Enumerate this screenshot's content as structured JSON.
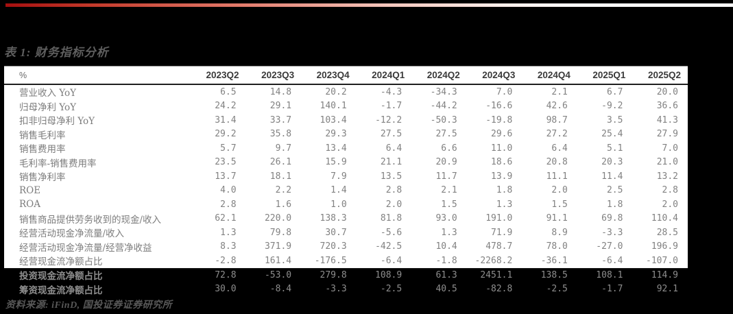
{
  "title": "表 1: 财务指标分析",
  "source_note": "资料来源: iFinD, 国投证券证券研究所",
  "colors": {
    "page_background": "#000000",
    "accent_bar_left": "#a50f0f",
    "accent_bar_right": "#ffffff",
    "table_background": "#ffffff",
    "header_text": "#3a3a3a",
    "body_text": "#818181",
    "title_text": "#5e5e5e"
  },
  "chart_data": {
    "type": "table",
    "title": "表 1: 财务指标分析",
    "unit_header": "%",
    "columns": [
      "2023Q2",
      "2023Q3",
      "2023Q4",
      "2024Q1",
      "2024Q2",
      "2024Q3",
      "2024Q4",
      "2025Q1",
      "2025Q2"
    ],
    "rows": [
      {
        "label": "营业收入 YoY",
        "values": [
          "6.5",
          "14.8",
          "20.2",
          "-4.3",
          "-34.3",
          "7.0",
          "2.1",
          "6.7",
          "20.0"
        ]
      },
      {
        "label": "归母净利 YoY",
        "values": [
          "24.2",
          "29.1",
          "140.1",
          "-1.7",
          "-44.2",
          "-16.6",
          "42.6",
          "-9.2",
          "36.6"
        ]
      },
      {
        "label": "扣非归母净利 YoY",
        "values": [
          "31.4",
          "33.7",
          "103.4",
          "-12.2",
          "-50.3",
          "-19.8",
          "98.7",
          "3.5",
          "41.3"
        ]
      },
      {
        "label": "销售毛利率",
        "values": [
          "29.2",
          "35.8",
          "29.3",
          "27.5",
          "27.5",
          "29.6",
          "27.2",
          "25.4",
          "27.9"
        ]
      },
      {
        "label": "销售费用率",
        "values": [
          "5.7",
          "9.7",
          "13.4",
          "6.4",
          "6.6",
          "11.0",
          "6.4",
          "5.1",
          "7.0"
        ]
      },
      {
        "label": "毛利率-销售费用率",
        "values": [
          "23.5",
          "26.1",
          "15.9",
          "21.1",
          "20.9",
          "18.6",
          "20.8",
          "20.3",
          "21.0"
        ]
      },
      {
        "label": "销售净利率",
        "values": [
          "13.7",
          "18.1",
          "7.9",
          "13.5",
          "11.7",
          "13.9",
          "11.1",
          "11.4",
          "13.2"
        ]
      },
      {
        "label": "ROE",
        "values": [
          "4.0",
          "2.2",
          "1.4",
          "2.8",
          "2.1",
          "1.8",
          "2.0",
          "2.5",
          "2.8"
        ]
      },
      {
        "label": "ROA",
        "values": [
          "2.8",
          "1.6",
          "1.0",
          "2.0",
          "1.5",
          "1.3",
          "1.5",
          "1.8",
          "2.0"
        ]
      },
      {
        "label": "销售商品提供劳务收到的现金/收入",
        "values": [
          "62.1",
          "220.0",
          "138.3",
          "81.8",
          "93.0",
          "191.0",
          "91.1",
          "69.8",
          "110.4"
        ]
      },
      {
        "label": "经营活动现金净流量/收入",
        "values": [
          "1.3",
          "79.8",
          "30.7",
          "-5.6",
          "1.3",
          "71.9",
          "8.9",
          "-3.3",
          "28.5"
        ]
      },
      {
        "label": "经营活动现金净流量/经营净收益",
        "values": [
          "8.3",
          "371.9",
          "720.3",
          "-42.5",
          "10.4",
          "478.7",
          "78.0",
          "-27.0",
          "196.9"
        ]
      },
      {
        "label": "经营现金流净额占比",
        "values": [
          "-2.8",
          "161.4",
          "-176.5",
          "-6.4",
          "-1.8",
          "-2268.2",
          "-36.1",
          "-6.4",
          "-107.0"
        ]
      }
    ],
    "rows_below_rule": [
      {
        "label": "投资现金流净额占比",
        "values": [
          "72.8",
          "-53.0",
          "279.8",
          "108.9",
          "61.3",
          "2451.1",
          "138.5",
          "108.1",
          "114.9"
        ]
      },
      {
        "label": "筹资现金流净额占比",
        "values": [
          "30.0",
          "-8.4",
          "-3.3",
          "-2.5",
          "40.5",
          "-82.8",
          "-2.5",
          "-1.7",
          "92.1"
        ]
      }
    ]
  }
}
